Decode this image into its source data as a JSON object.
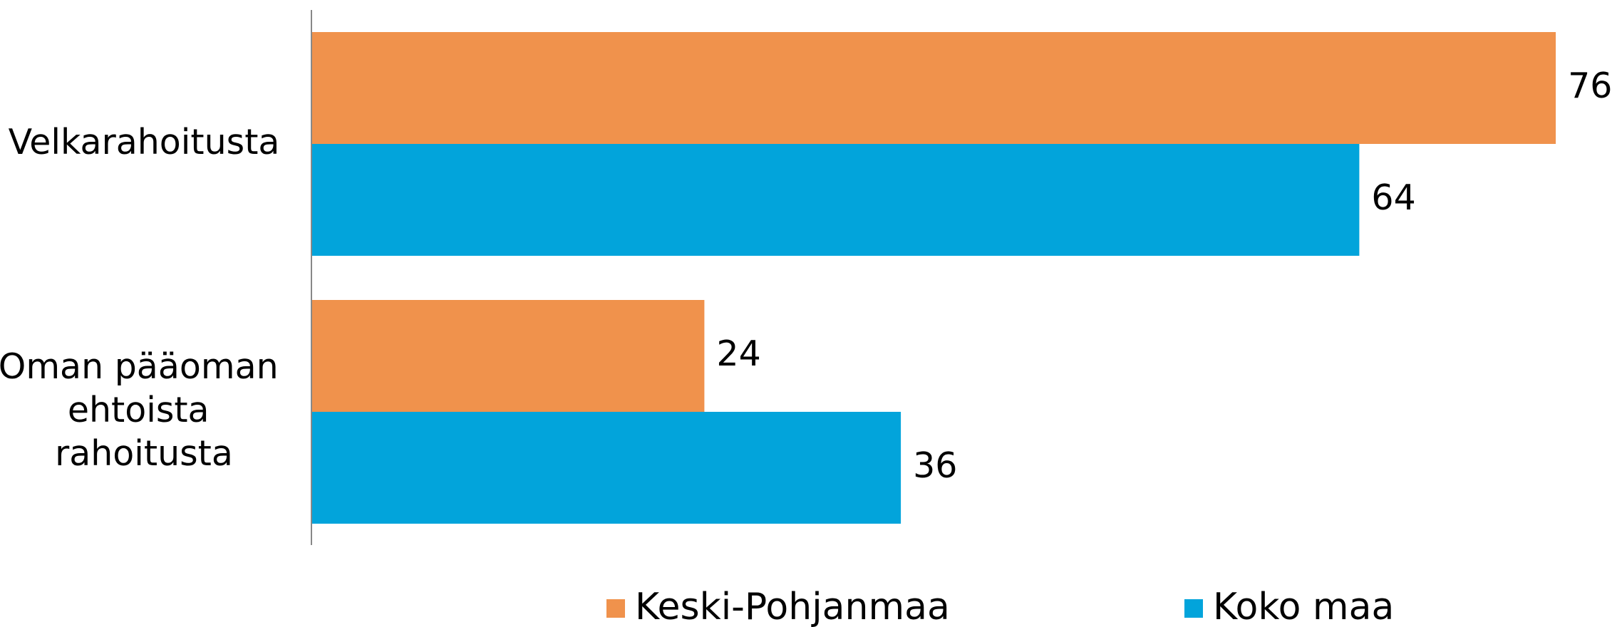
{
  "chart_data": {
    "type": "hbar",
    "categories": [
      "Velkarahoitusta",
      "Oman pääoman ehtoista rahoitusta"
    ],
    "series": [
      {
        "name": "Keski-Pohjanmaa",
        "color": "#f0924c",
        "values": [
          76,
          24
        ]
      },
      {
        "name": "Koko maa",
        "color": "#02a4db",
        "values": [
          64,
          36
        ]
      }
    ],
    "xlim": [
      0,
      80
    ],
    "legend": "bottom"
  }
}
